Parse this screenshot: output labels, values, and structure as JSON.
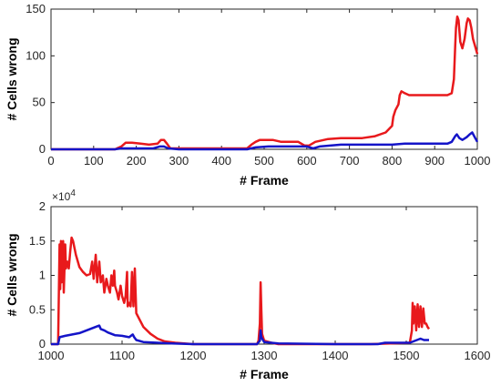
{
  "chart_data": [
    {
      "type": "line",
      "title": "",
      "xlabel": "# Frame",
      "ylabel": "# Cells wrong",
      "xlim": [
        0,
        1000
      ],
      "ylim": [
        0,
        150
      ],
      "xticks": [
        "0",
        "100",
        "200",
        "300",
        "400",
        "500",
        "600",
        "700",
        "800",
        "900",
        "1000"
      ],
      "yticks": [
        "0",
        "50",
        "100",
        "150"
      ],
      "grid": false,
      "series": [
        {
          "color": "#e8191c",
          "points": [
            [
              0,
              0
            ],
            [
              150,
              0
            ],
            [
              165,
              3
            ],
            [
              175,
              7
            ],
            [
              190,
              7
            ],
            [
              210,
              6
            ],
            [
              230,
              5
            ],
            [
              250,
              6
            ],
            [
              258,
              10
            ],
            [
              265,
              10
            ],
            [
              272,
              6
            ],
            [
              280,
              1
            ],
            [
              300,
              1
            ],
            [
              350,
              1
            ],
            [
              400,
              1
            ],
            [
              460,
              1
            ],
            [
              470,
              5
            ],
            [
              480,
              8
            ],
            [
              490,
              10
            ],
            [
              500,
              10
            ],
            [
              520,
              10
            ],
            [
              540,
              8
            ],
            [
              560,
              8
            ],
            [
              580,
              8
            ],
            [
              595,
              4
            ],
            [
              605,
              4
            ],
            [
              620,
              8
            ],
            [
              650,
              11
            ],
            [
              680,
              12
            ],
            [
              700,
              12
            ],
            [
              730,
              12
            ],
            [
              760,
              14
            ],
            [
              785,
              18
            ],
            [
              800,
              25
            ],
            [
              803,
              35
            ],
            [
              808,
              42
            ],
            [
              815,
              48
            ],
            [
              818,
              58
            ],
            [
              822,
              62
            ],
            [
              830,
              60
            ],
            [
              840,
              58
            ],
            [
              870,
              58
            ],
            [
              900,
              58
            ],
            [
              930,
              58
            ],
            [
              940,
              60
            ],
            [
              945,
              75
            ],
            [
              948,
              110
            ],
            [
              950,
              130
            ],
            [
              953,
              142
            ],
            [
              956,
              138
            ],
            [
              960,
              115
            ],
            [
              965,
              108
            ],
            [
              970,
              118
            ],
            [
              975,
              135
            ],
            [
              978,
              140
            ],
            [
              982,
              138
            ],
            [
              986,
              130
            ],
            [
              990,
              118
            ],
            [
              995,
              110
            ],
            [
              1000,
              102
            ]
          ]
        },
        {
          "color": "#1414c8",
          "points": [
            [
              0,
              0
            ],
            [
              150,
              0
            ],
            [
              165,
              1
            ],
            [
              200,
              1
            ],
            [
              240,
              1
            ],
            [
              255,
              3
            ],
            [
              265,
              3
            ],
            [
              275,
              1
            ],
            [
              300,
              0
            ],
            [
              400,
              0
            ],
            [
              460,
              0
            ],
            [
              480,
              2
            ],
            [
              510,
              3
            ],
            [
              550,
              3
            ],
            [
              600,
              3
            ],
            [
              615,
              1
            ],
            [
              630,
              3
            ],
            [
              680,
              5
            ],
            [
              720,
              5
            ],
            [
              760,
              5
            ],
            [
              790,
              5
            ],
            [
              800,
              5
            ],
            [
              830,
              6
            ],
            [
              870,
              6
            ],
            [
              930,
              6
            ],
            [
              940,
              8
            ],
            [
              948,
              14
            ],
            [
              952,
              16
            ],
            [
              958,
              12
            ],
            [
              965,
              10
            ],
            [
              975,
              13
            ],
            [
              982,
              16
            ],
            [
              988,
              18
            ],
            [
              995,
              12
            ],
            [
              1000,
              8
            ]
          ]
        }
      ]
    },
    {
      "type": "line",
      "title": "",
      "xlabel": "# Frame",
      "ylabel": "# Cells wrong",
      "exponent_label": "×10",
      "exponent_power": "4",
      "xlim": [
        1000,
        1600
      ],
      "ylim": [
        0,
        2
      ],
      "xticks": [
        "1000",
        "1100",
        "1200",
        "1300",
        "1400",
        "1500",
        "1600"
      ],
      "yticks": [
        "0",
        "0.5",
        "1",
        "1.5",
        "2"
      ],
      "grid": false,
      "series": [
        {
          "color": "#e8191c",
          "points": [
            [
              1000,
              0
            ],
            [
              1010,
              0
            ],
            [
              1012,
              1.45
            ],
            [
              1013,
              0.8
            ],
            [
              1014,
              1.5
            ],
            [
              1015,
              0.9
            ],
            [
              1017,
              1.5
            ],
            [
              1018,
              0.75
            ],
            [
              1020,
              1.45
            ],
            [
              1021,
              1.1
            ],
            [
              1023,
              1.2
            ],
            [
              1025,
              1.1
            ],
            [
              1027,
              1.35
            ],
            [
              1029,
              1.55
            ],
            [
              1031,
              1.5
            ],
            [
              1035,
              1.3
            ],
            [
              1040,
              1.12
            ],
            [
              1045,
              1.05
            ],
            [
              1050,
              1.0
            ],
            [
              1055,
              1.02
            ],
            [
              1058,
              1.2
            ],
            [
              1060,
              0.95
            ],
            [
              1063,
              1.3
            ],
            [
              1065,
              0.9
            ],
            [
              1068,
              1.2
            ],
            [
              1070,
              0.9
            ],
            [
              1073,
              1.0
            ],
            [
              1075,
              0.75
            ],
            [
              1078,
              0.95
            ],
            [
              1080,
              0.85
            ],
            [
              1083,
              0.75
            ],
            [
              1085,
              1.0
            ],
            [
              1087,
              0.85
            ],
            [
              1089,
              1.07
            ],
            [
              1090,
              0.85
            ],
            [
              1093,
              0.75
            ],
            [
              1095,
              0.65
            ],
            [
              1098,
              0.85
            ],
            [
              1100,
              0.7
            ],
            [
              1103,
              0.6
            ],
            [
              1105,
              0.7
            ],
            [
              1107,
              1.05
            ],
            [
              1108,
              0.55
            ],
            [
              1110,
              0.6
            ],
            [
              1112,
              0.55
            ],
            [
              1114,
              1.05
            ],
            [
              1116,
              0.55
            ],
            [
              1118,
              1.1
            ],
            [
              1120,
              0.45
            ],
            [
              1125,
              0.35
            ],
            [
              1130,
              0.25
            ],
            [
              1140,
              0.15
            ],
            [
              1150,
              0.08
            ],
            [
              1160,
              0.04
            ],
            [
              1175,
              0.02
            ],
            [
              1200,
              0
            ],
            [
              1290,
              0
            ],
            [
              1292,
              0.05
            ],
            [
              1294,
              0.3
            ],
            [
              1295,
              0.9
            ],
            [
              1296,
              0.5
            ],
            [
              1297,
              0.15
            ],
            [
              1300,
              0.05
            ],
            [
              1310,
              0.02
            ],
            [
              1320,
              0
            ],
            [
              1450,
              0
            ],
            [
              1505,
              0.02
            ],
            [
              1508,
              0.2
            ],
            [
              1509,
              0.6
            ],
            [
              1510,
              0.3
            ],
            [
              1512,
              0.55
            ],
            [
              1514,
              0.2
            ],
            [
              1516,
              0.58
            ],
            [
              1518,
              0.25
            ],
            [
              1520,
              0.55
            ],
            [
              1522,
              0.25
            ],
            [
              1524,
              0.52
            ],
            [
              1526,
              0.3
            ],
            [
              1528,
              0.3
            ],
            [
              1530,
              0.25
            ],
            [
              1532,
              0.22
            ]
          ]
        },
        {
          "color": "#1414c8",
          "points": [
            [
              1000,
              0
            ],
            [
              1010,
              0
            ],
            [
              1012,
              0.1
            ],
            [
              1020,
              0.12
            ],
            [
              1030,
              0.14
            ],
            [
              1040,
              0.16
            ],
            [
              1050,
              0.2
            ],
            [
              1055,
              0.22
            ],
            [
              1060,
              0.24
            ],
            [
              1065,
              0.26
            ],
            [
              1068,
              0.27
            ],
            [
              1070,
              0.22
            ],
            [
              1075,
              0.2
            ],
            [
              1080,
              0.17
            ],
            [
              1090,
              0.13
            ],
            [
              1100,
              0.12
            ],
            [
              1110,
              0.1
            ],
            [
              1115,
              0.14
            ],
            [
              1117,
              0.1
            ],
            [
              1120,
              0.06
            ],
            [
              1130,
              0.03
            ],
            [
              1150,
              0.02
            ],
            [
              1170,
              0.01
            ],
            [
              1200,
              0
            ],
            [
              1290,
              0
            ],
            [
              1294,
              0.05
            ],
            [
              1295,
              0.2
            ],
            [
              1296,
              0.1
            ],
            [
              1300,
              0.03
            ],
            [
              1320,
              0.01
            ],
            [
              1400,
              0
            ],
            [
              1460,
              0
            ],
            [
              1470,
              0.02
            ],
            [
              1505,
              0.02
            ],
            [
              1510,
              0.04
            ],
            [
              1515,
              0.06
            ],
            [
              1520,
              0.08
            ],
            [
              1525,
              0.06
            ],
            [
              1532,
              0.06
            ]
          ]
        }
      ]
    }
  ]
}
